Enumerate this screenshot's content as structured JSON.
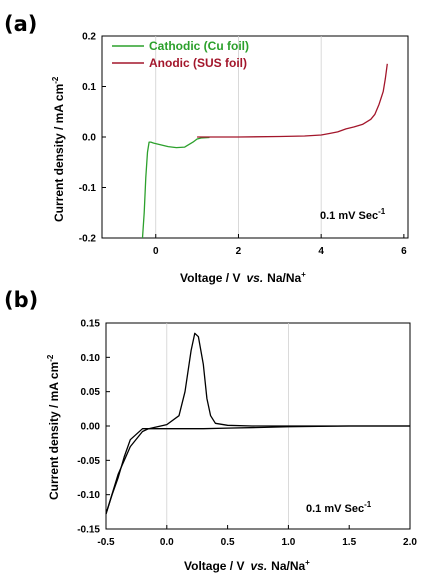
{
  "chart_data": [
    {
      "panel_label": "(a)",
      "type": "line",
      "xlabel": "Voltage / V",
      "xlabel_italic": "vs.",
      "xlabel_ref": "Na/Na",
      "xlabel_sup": "+",
      "ylabel": "Current density / mA cm",
      "ylabel_sup": "-2",
      "xlim": [
        -1.3,
        6.1
      ],
      "ylim": [
        -0.2,
        0.2
      ],
      "xticks": [
        0,
        2,
        4,
        6
      ],
      "xtick_labels": [
        "0",
        "2",
        "4",
        "6"
      ],
      "yticks": [
        -0.2,
        -0.1,
        0.0,
        0.1,
        0.2
      ],
      "ytick_labels": [
        "-0.2",
        "-0.1",
        "0.0",
        "0.1",
        "0.2"
      ],
      "vertical_gridlines": [
        0,
        2,
        4
      ],
      "legend_position": "top-left",
      "annotation": "0.1 mV Sec",
      "annotation_sup": "-1",
      "series": [
        {
          "name": "Cathodic (Cu foil)",
          "color": "#2ca02c",
          "x": [
            -0.32,
            -0.28,
            -0.24,
            -0.2,
            -0.16,
            -0.12,
            -0.05,
            0.1,
            0.3,
            0.5,
            0.7,
            0.9,
            1.0,
            1.1,
            1.3
          ],
          "y": [
            -0.2,
            -0.15,
            -0.08,
            -0.03,
            -0.01,
            -0.01,
            -0.012,
            -0.015,
            -0.019,
            -0.021,
            -0.02,
            -0.01,
            -0.004,
            -0.002,
            -0.001
          ]
        },
        {
          "name": "Anodic (SUS foil)",
          "color": "#a3162b",
          "x": [
            1.0,
            2.0,
            3.0,
            3.6,
            4.0,
            4.2,
            4.4,
            4.6,
            4.8,
            5.0,
            5.2,
            5.3,
            5.4,
            5.5,
            5.55,
            5.6
          ],
          "y": [
            0.0,
            0.0,
            0.001,
            0.002,
            0.004,
            0.007,
            0.01,
            0.016,
            0.02,
            0.025,
            0.035,
            0.045,
            0.065,
            0.09,
            0.115,
            0.145
          ]
        }
      ]
    },
    {
      "panel_label": "(b)",
      "type": "line",
      "xlabel": "Voltage / V",
      "xlabel_italic": "vs.",
      "xlabel_ref": "Na/Na",
      "xlabel_sup": "+",
      "ylabel": "Current density / mA cm",
      "ylabel_sup": "-2",
      "xlim": [
        -0.5,
        2.0
      ],
      "ylim": [
        -0.15,
        0.15
      ],
      "xticks": [
        -0.5,
        0.0,
        0.5,
        1.0,
        1.5,
        2.0
      ],
      "xtick_labels": [
        "-0.5",
        "0.0",
        "0.5",
        "1.0",
        "1.5",
        "2.0"
      ],
      "yticks": [
        -0.15,
        -0.1,
        -0.05,
        0.0,
        0.05,
        0.1,
        0.15
      ],
      "ytick_labels": [
        "-0.15",
        "-0.10",
        "-0.05",
        "0.00",
        "0.05",
        "0.10",
        "0.15"
      ],
      "vertical_gridlines": [
        0.0,
        1.0
      ],
      "annotation": "0.1 mV Sec",
      "annotation_sup": "-1",
      "series": [
        {
          "color": "#000000",
          "x": [
            2.0,
            1.5,
            1.0,
            0.8,
            0.5,
            0.3,
            0.1,
            0.0,
            -0.1,
            -0.2,
            -0.3,
            -0.35,
            -0.4,
            -0.45,
            -0.5
          ],
          "y": [
            0.0,
            0.0,
            -0.001,
            -0.002,
            -0.003,
            -0.004,
            -0.004,
            -0.004,
            -0.004,
            -0.004,
            -0.02,
            -0.045,
            -0.075,
            -0.1,
            -0.128
          ],
          "segment": "cathodic sweep"
        },
        {
          "color": "#000000",
          "x": [
            -0.5,
            -0.4,
            -0.3,
            -0.2,
            -0.15,
            -0.1,
            0.0,
            0.1,
            0.15,
            0.2,
            0.23,
            0.26,
            0.3,
            0.33,
            0.36,
            0.4,
            0.5,
            0.7,
            1.0,
            1.5,
            2.0
          ],
          "y": [
            -0.128,
            -0.07,
            -0.03,
            -0.008,
            -0.004,
            -0.002,
            0.002,
            0.015,
            0.05,
            0.11,
            0.135,
            0.13,
            0.09,
            0.04,
            0.015,
            0.004,
            0.001,
            0.0,
            0.0,
            0.0,
            0.0
          ],
          "segment": "anodic sweep"
        }
      ]
    }
  ]
}
